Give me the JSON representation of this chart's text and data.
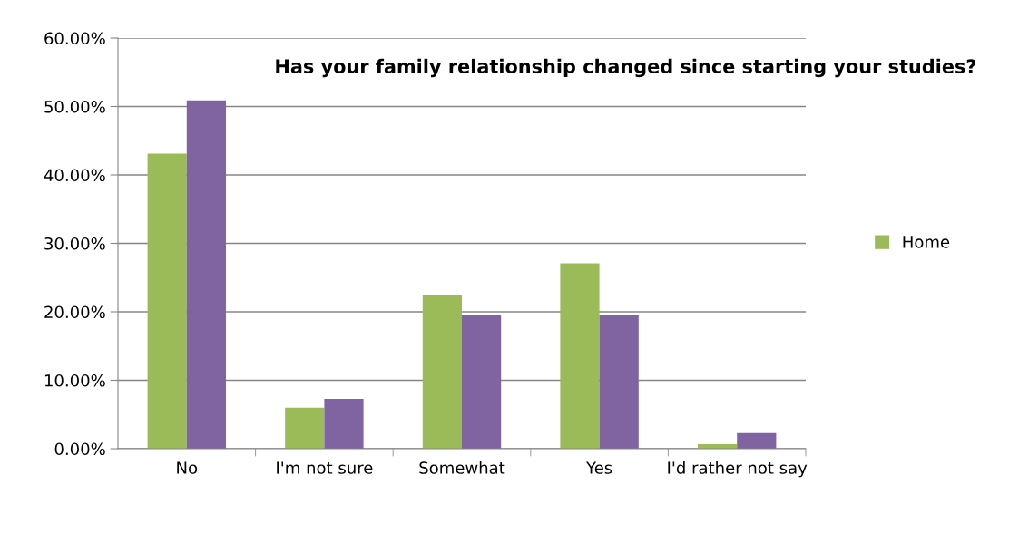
{
  "chart_data": {
    "type": "bar",
    "title": "Has your family relationship changed since starting your studies?",
    "categories": [
      "No",
      "I'm not sure",
      "Somewhat",
      "Yes",
      "I'd rather not say"
    ],
    "series": [
      {
        "name": "Home",
        "color": "#9bbb59",
        "values": [
          43.1,
          6.0,
          22.5,
          27.1,
          0.65
        ]
      },
      {
        "color": "#8064a2",
        "values": [
          50.9,
          7.3,
          19.5,
          19.5,
          2.3
        ]
      }
    ],
    "ylim": [
      0,
      60
    ],
    "yticks": [
      {
        "value": 0,
        "label": "0.00%"
      },
      {
        "value": 10,
        "label": "10.00%"
      },
      {
        "value": 20,
        "label": "20.00%"
      },
      {
        "value": 30,
        "label": "30.00%"
      },
      {
        "value": 40,
        "label": "40.00%"
      },
      {
        "value": 50,
        "label": "50.00%"
      },
      {
        "value": 60,
        "label": "60.00%"
      }
    ],
    "grid": "y",
    "legend": "right"
  }
}
